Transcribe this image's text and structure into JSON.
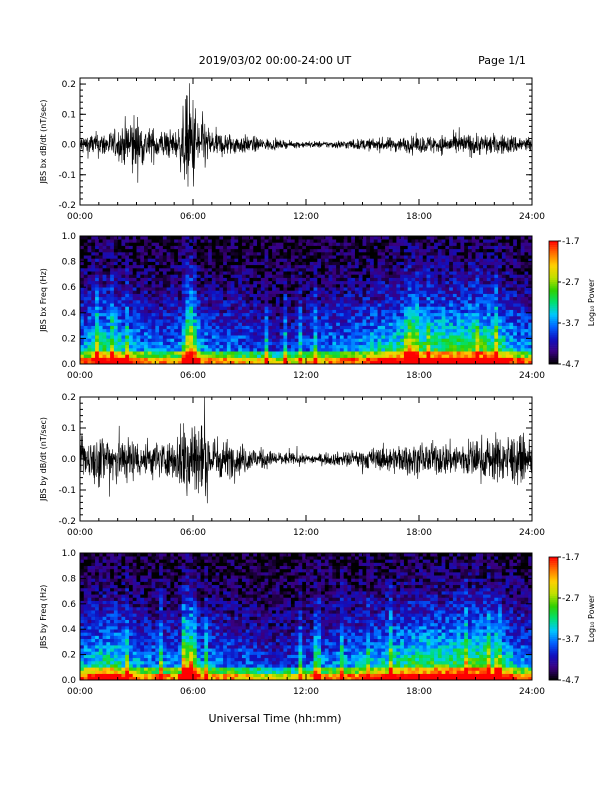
{
  "header": {
    "title": "2019/03/02  00:00-24:00 UT",
    "page": "Page 1/1"
  },
  "footer": {
    "xlabel": "Universal Time (hh:mm)"
  },
  "colorbar": {
    "label": "Log₁₀ Power",
    "ticks": [
      "-1.7",
      "-2.7",
      "-3.7",
      "-4.7"
    ],
    "range": [
      -4.7,
      -1.7
    ],
    "colors": [
      "#000000",
      "#3a0080",
      "#1010c0",
      "#0060ff",
      "#00c8ff",
      "#00e070",
      "#30d000",
      "#c0e000",
      "#ffd000",
      "#ff7000",
      "#ff0000"
    ]
  },
  "chart_data": [
    {
      "type": "line",
      "title": "",
      "ylabel": "JBS bx dB/dt (nT/sec)",
      "xlabel": "",
      "xlim": [
        "00:00",
        "24:00"
      ],
      "ylim": [
        -0.2,
        0.22
      ],
      "yticks": [
        "0.2",
        "0.1",
        "0.0",
        "-0.1",
        "-0.2"
      ],
      "xticks": [
        "00:00",
        "06:00",
        "12:00",
        "18:00",
        "24:00"
      ],
      "envelope": [
        {
          "t": 0.0,
          "amp": 0.035
        },
        {
          "t": 1.0,
          "amp": 0.045
        },
        {
          "t": 2.0,
          "amp": 0.05
        },
        {
          "t": 2.8,
          "amp": 0.12
        },
        {
          "t": 3.5,
          "amp": 0.06
        },
        {
          "t": 5.2,
          "amp": 0.05
        },
        {
          "t": 5.8,
          "amp": 0.21
        },
        {
          "t": 6.3,
          "amp": 0.12
        },
        {
          "t": 7.0,
          "amp": 0.05
        },
        {
          "t": 9.0,
          "amp": 0.03
        },
        {
          "t": 11.0,
          "amp": 0.012
        },
        {
          "t": 13.0,
          "amp": 0.012
        },
        {
          "t": 15.0,
          "amp": 0.02
        },
        {
          "t": 18.0,
          "amp": 0.03
        },
        {
          "t": 21.0,
          "amp": 0.04
        },
        {
          "t": 24.0,
          "amp": 0.03
        }
      ]
    },
    {
      "type": "heatmap",
      "title": "",
      "ylabel": "JBS bx Freq (Hz)",
      "xlabel": "",
      "xlim": [
        "00:00",
        "24:00"
      ],
      "ylim": [
        0.0,
        1.0
      ],
      "yticks": [
        "1.0",
        "0.8",
        "0.6",
        "0.4",
        "0.2",
        "0.0"
      ],
      "xticks": [
        "00:00",
        "06:00",
        "12:00",
        "18:00",
        "24:00"
      ],
      "zlabel": "Log₁₀ Power",
      "zlim": [
        -4.7,
        -1.7
      ]
    },
    {
      "type": "line",
      "title": "",
      "ylabel": "JBS by dB/dt (nT/sec)",
      "xlabel": "",
      "xlim": [
        "00:00",
        "24:00"
      ],
      "ylim": [
        -0.2,
        0.2
      ],
      "yticks": [
        "0.2",
        "0.1",
        "0.0",
        "-0.1",
        "-0.2"
      ],
      "xticks": [
        "00:00",
        "06:00",
        "12:00",
        "18:00",
        "24:00"
      ],
      "envelope": [
        {
          "t": 0.0,
          "amp": 0.06
        },
        {
          "t": 1.0,
          "amp": 0.09
        },
        {
          "t": 1.5,
          "amp": 0.1
        },
        {
          "t": 3.0,
          "amp": 0.07
        },
        {
          "t": 5.0,
          "amp": 0.06
        },
        {
          "t": 5.8,
          "amp": 0.2
        },
        {
          "t": 6.5,
          "amp": 0.12
        },
        {
          "t": 7.5,
          "amp": 0.07
        },
        {
          "t": 10.0,
          "amp": 0.03
        },
        {
          "t": 12.0,
          "amp": 0.015
        },
        {
          "t": 14.0,
          "amp": 0.025
        },
        {
          "t": 17.0,
          "amp": 0.05
        },
        {
          "t": 20.0,
          "amp": 0.06
        },
        {
          "t": 23.0,
          "amp": 0.09
        },
        {
          "t": 24.0,
          "amp": 0.05
        }
      ]
    },
    {
      "type": "heatmap",
      "title": "",
      "ylabel": "JBS by Freq (Hz)",
      "xlabel": "",
      "xlim": [
        "00:00",
        "24:00"
      ],
      "ylim": [
        0.0,
        1.0
      ],
      "yticks": [
        "1.0",
        "0.8",
        "0.6",
        "0.4",
        "0.2",
        "0.0"
      ],
      "xticks": [
        "00:00",
        "06:00",
        "12:00",
        "18:00",
        "24:00"
      ],
      "zlabel": "Log₁₀ Power",
      "zlim": [
        -4.7,
        -1.7
      ]
    }
  ]
}
